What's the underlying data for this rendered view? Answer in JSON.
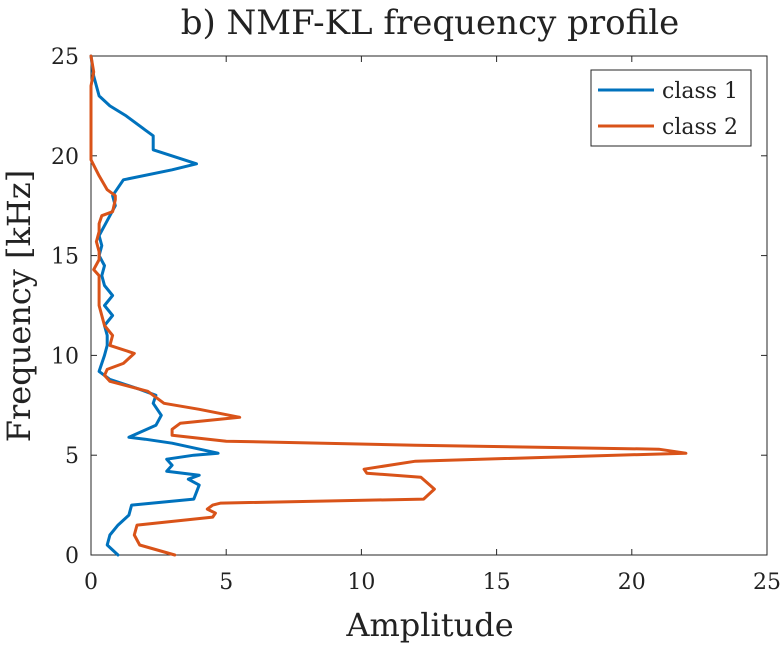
{
  "chart_data": {
    "type": "line",
    "title": "b) NMF-KL frequency profile",
    "xlabel": "Amplitude",
    "ylabel": "Frequency [kHz]",
    "xlim": [
      0,
      25
    ],
    "ylim": [
      0,
      25
    ],
    "xticks": [
      0,
      5,
      10,
      15,
      20,
      25
    ],
    "yticks": [
      0,
      5,
      10,
      15,
      20,
      25
    ],
    "grid": false,
    "legend_position": "top-right",
    "series": [
      {
        "name": "class 1",
        "color": "#0072BD",
        "points": [
          [
            1.0,
            0.0
          ],
          [
            0.6,
            0.5
          ],
          [
            0.7,
            1.0
          ],
          [
            1.0,
            1.5
          ],
          [
            1.4,
            2.0
          ],
          [
            1.5,
            2.5
          ],
          [
            3.8,
            2.8
          ],
          [
            4.0,
            3.5
          ],
          [
            3.6,
            3.8
          ],
          [
            4.0,
            4.0
          ],
          [
            2.8,
            4.2
          ],
          [
            3.0,
            4.5
          ],
          [
            2.8,
            4.8
          ],
          [
            3.8,
            5.0
          ],
          [
            4.7,
            5.1
          ],
          [
            3.0,
            5.6
          ],
          [
            2.0,
            5.8
          ],
          [
            1.4,
            5.9
          ],
          [
            2.4,
            6.5
          ],
          [
            2.6,
            7.0
          ],
          [
            2.3,
            7.6
          ],
          [
            2.4,
            8.0
          ],
          [
            1.8,
            8.3
          ],
          [
            0.7,
            8.8
          ],
          [
            0.3,
            9.2
          ],
          [
            0.4,
            9.6
          ],
          [
            0.5,
            10.0
          ],
          [
            0.6,
            10.5
          ],
          [
            0.6,
            11.0
          ],
          [
            0.5,
            11.5
          ],
          [
            0.8,
            12.0
          ],
          [
            0.5,
            12.5
          ],
          [
            0.8,
            13.0
          ],
          [
            0.5,
            13.5
          ],
          [
            0.4,
            14.0
          ],
          [
            0.5,
            14.5
          ],
          [
            0.3,
            15.0
          ],
          [
            0.4,
            15.5
          ],
          [
            0.3,
            16.0
          ],
          [
            0.5,
            16.5
          ],
          [
            0.7,
            17.0
          ],
          [
            0.9,
            17.5
          ],
          [
            0.8,
            18.0
          ],
          [
            1.2,
            18.8
          ],
          [
            3.0,
            19.3
          ],
          [
            3.9,
            19.6
          ],
          [
            2.3,
            20.3
          ],
          [
            2.3,
            21.0
          ],
          [
            2.0,
            21.3
          ],
          [
            1.3,
            22.0
          ],
          [
            0.7,
            22.5
          ],
          [
            0.3,
            23.0
          ],
          [
            0.1,
            24.0
          ],
          [
            0.0,
            25.0
          ]
        ]
      },
      {
        "name": "class 2",
        "color": "#D95319",
        "points": [
          [
            3.1,
            0.0
          ],
          [
            1.8,
            0.5
          ],
          [
            1.6,
            1.0
          ],
          [
            1.7,
            1.5
          ],
          [
            4.5,
            1.9
          ],
          [
            4.6,
            2.1
          ],
          [
            4.3,
            2.3
          ],
          [
            4.5,
            2.5
          ],
          [
            4.8,
            2.6
          ],
          [
            12.3,
            2.8
          ],
          [
            12.7,
            3.3
          ],
          [
            12.2,
            3.9
          ],
          [
            10.2,
            4.1
          ],
          [
            10.1,
            4.3
          ],
          [
            12.0,
            4.7
          ],
          [
            22.0,
            5.1
          ],
          [
            21.0,
            5.3
          ],
          [
            12.0,
            5.5
          ],
          [
            5.0,
            5.7
          ],
          [
            3.0,
            6.0
          ],
          [
            3.0,
            6.3
          ],
          [
            3.3,
            6.6
          ],
          [
            5.5,
            6.9
          ],
          [
            4.0,
            7.3
          ],
          [
            2.7,
            7.6
          ],
          [
            2.1,
            8.2
          ],
          [
            0.7,
            8.7
          ],
          [
            0.5,
            9.0
          ],
          [
            0.6,
            9.3
          ],
          [
            1.2,
            9.6
          ],
          [
            1.6,
            10.1
          ],
          [
            0.7,
            10.5
          ],
          [
            0.8,
            11.0
          ],
          [
            0.5,
            11.5
          ],
          [
            0.4,
            12.0
          ],
          [
            0.3,
            12.5
          ],
          [
            0.3,
            13.0
          ],
          [
            0.3,
            13.5
          ],
          [
            0.3,
            14.0
          ],
          [
            0.1,
            14.3
          ],
          [
            0.3,
            14.8
          ],
          [
            0.3,
            15.2
          ],
          [
            0.2,
            15.7
          ],
          [
            0.3,
            16.2
          ],
          [
            0.3,
            16.6
          ],
          [
            0.4,
            17.0
          ],
          [
            0.8,
            17.2
          ],
          [
            0.9,
            17.8
          ],
          [
            0.9,
            18.0
          ],
          [
            0.6,
            18.3
          ],
          [
            0.3,
            19.0
          ],
          [
            0.0,
            19.8
          ],
          [
            0.0,
            22.0
          ],
          [
            0.0,
            23.5
          ],
          [
            0.1,
            24.2
          ],
          [
            0.0,
            25.0
          ]
        ]
      }
    ]
  }
}
